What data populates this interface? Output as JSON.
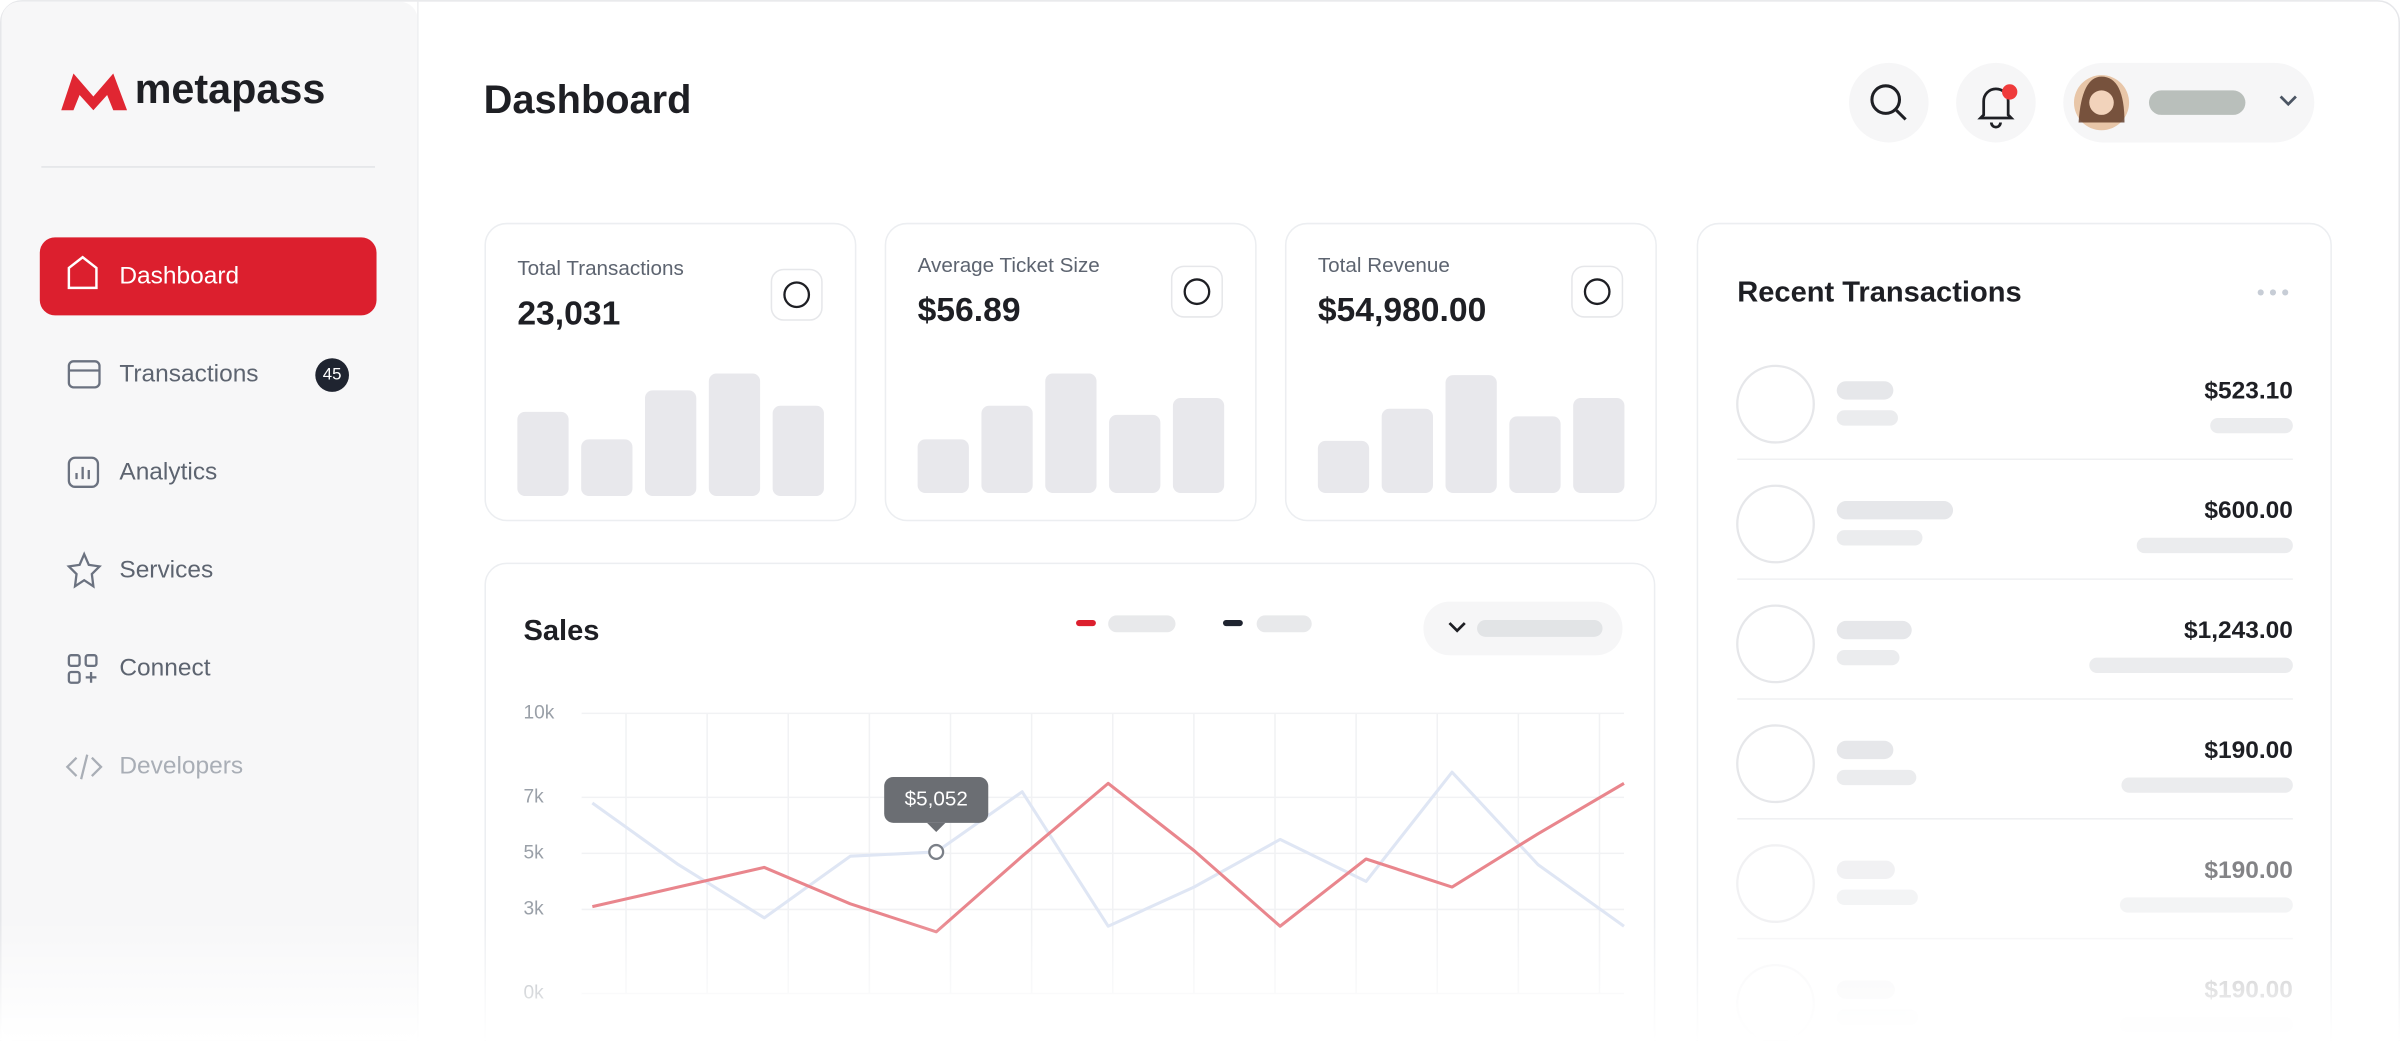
{
  "sidebar": {
    "logo": "metapass",
    "nav": [
      {
        "label": "Dashboard"
      },
      {
        "label": "Transactions",
        "badge": "45"
      },
      {
        "label": "Analytics"
      },
      {
        "label": "Services"
      },
      {
        "label": "Connect"
      },
      {
        "label": "Developers"
      }
    ]
  },
  "header": {
    "title": "Dashboard"
  },
  "stats": [
    {
      "label": "Total Transactions",
      "value": "23,031"
    },
    {
      "label": "Average Ticket Size",
      "value": "$56.89"
    },
    {
      "label": "Total Revenue",
      "value": "$54,980.00"
    }
  ],
  "sales": {
    "title": "Sales",
    "type": "line",
    "categories": [
      null,
      null,
      null,
      null,
      null,
      null,
      null,
      null,
      null,
      null,
      null,
      null,
      null
    ],
    "ylim": [
      0,
      10000
    ],
    "yticks": [
      {
        "value": 10000,
        "label": "10k"
      },
      {
        "value": 7000,
        "label": "7k"
      },
      {
        "value": 5000,
        "label": "5k"
      },
      {
        "value": 3000,
        "label": "3k"
      },
      {
        "value": 0,
        "label": "0k"
      }
    ],
    "grid": true,
    "series": [
      {
        "color": "#e9868d",
        "values": [
          3100,
          3800,
          4500,
          3200,
          2200,
          4900,
          7500,
          5100,
          2400,
          4800,
          3800,
          5700,
          7500
        ]
      },
      {
        "color": "#dfe6f4",
        "values": [
          6800,
          4600,
          2700,
          4900,
          5052,
          7200,
          2400,
          3800,
          5500,
          4000,
          7900,
          4600,
          2400
        ],
        "value_labels": [
          null,
          null,
          null,
          null,
          "$5,052",
          null,
          null,
          null,
          null,
          null,
          null,
          null,
          null
        ]
      }
    ]
  },
  "recent_transactions": {
    "title": "Recent Transactions",
    "amounts": [
      "$523.10",
      "$600.00",
      "$1,243.00",
      "$190.00",
      "$190.00",
      "$190.00"
    ]
  }
}
